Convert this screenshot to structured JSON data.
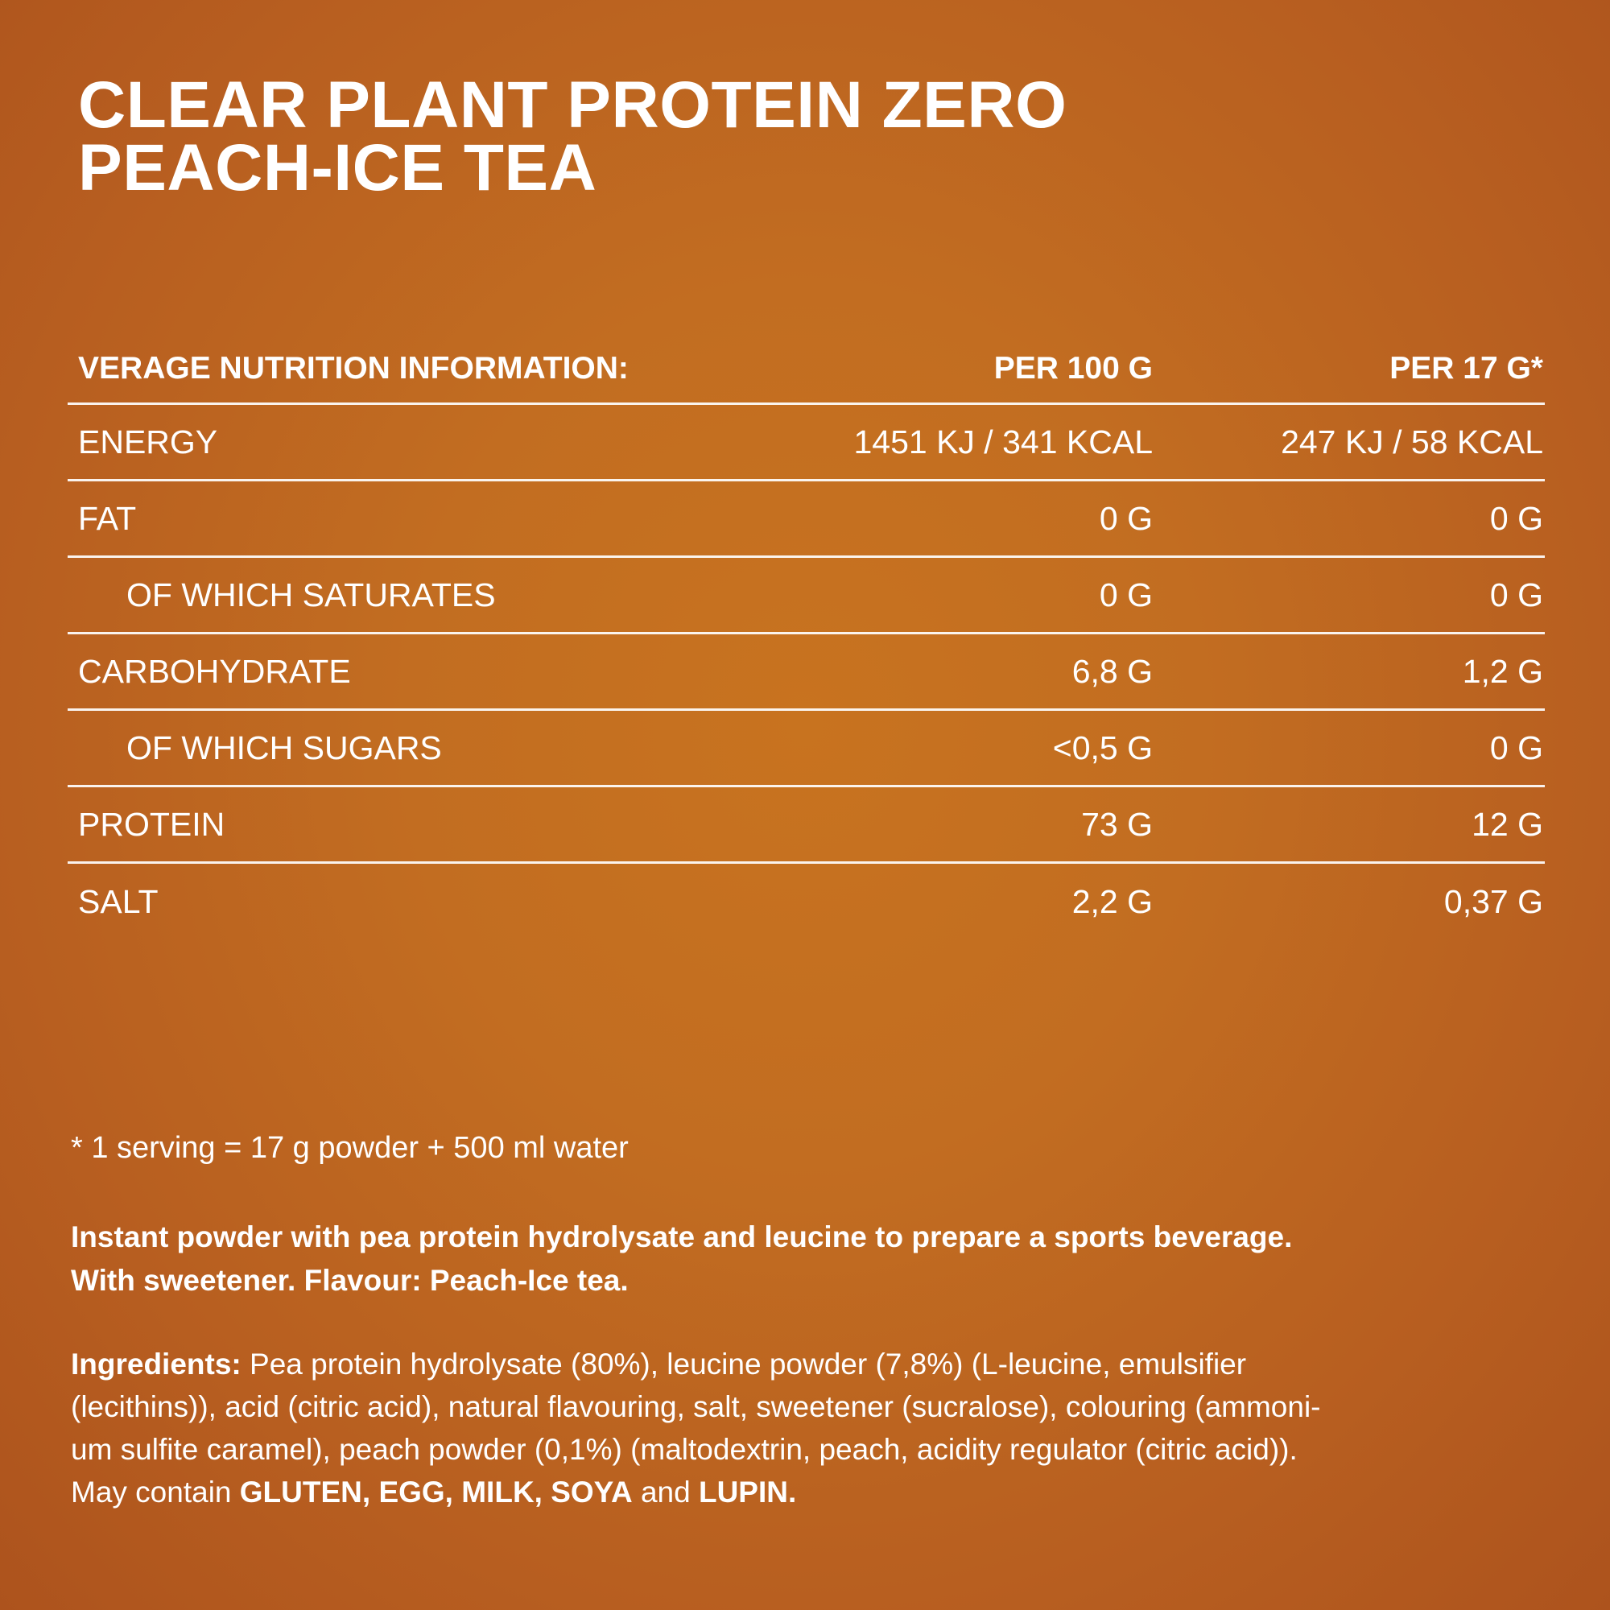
{
  "title": {
    "line1": "CLEAR PLANT PROTEIN ZERO",
    "line2": "PEACH-ICE TEA"
  },
  "table": {
    "header": {
      "label": "VERAGE NUTRITION INFORMATION:",
      "col1": "PER 100 G",
      "col2": "PER 17 G*"
    },
    "rows": [
      {
        "label": "ENERGY",
        "per100": "1451 KJ / 341 KCAL",
        "perServing": "247 KJ / 58 KCAL"
      },
      {
        "label": "FAT",
        "per100": "0 G",
        "perServing": "0 G"
      },
      {
        "label": "OF WHICH SATURATES",
        "per100": "0 G",
        "perServing": "0 G"
      },
      {
        "label": "CARBOHYDRATE",
        "per100": "6,8 G",
        "perServing": "1,2 G"
      },
      {
        "label": "OF WHICH SUGARS",
        "per100": "<0,5 G",
        "perServing": "0 G"
      },
      {
        "label": "PROTEIN",
        "per100": "73 G",
        "perServing": "12 G"
      },
      {
        "label": "SALT",
        "per100": "2,2 G",
        "perServing": "0,37 G"
      }
    ]
  },
  "footnote": "* 1 serving = 17 g powder + 500 ml water",
  "description": {
    "line1": "Instant powder with pea protein hydrolysate and leucine to prepare a sports beverage.",
    "line2": "With sweetener. Flavour: Peach-Ice tea."
  },
  "ingredients": {
    "heading": "Ingredients:",
    "line1_text": " Pea protein hydrolysate (80%), leucine powder (7,8%) (L-leucine, emulsifier",
    "line2": "(lecithins)), acid (citric acid), natural flavouring, salt, sweetener (sucralose), colouring (ammoni-",
    "line3": "um sulfite caramel), peach powder (0,1%) (maltodextrin, peach, acidity regulator (citric acid)).",
    "may_contain": "May contain ",
    "allergen1": "GLUTEN, EGG, MILK, SOYA",
    "and": " and ",
    "allergen2": "LUPIN."
  },
  "colors": {
    "background_center": "#c8731f",
    "background_edge": "#ad531d",
    "text": "#ffffff"
  }
}
